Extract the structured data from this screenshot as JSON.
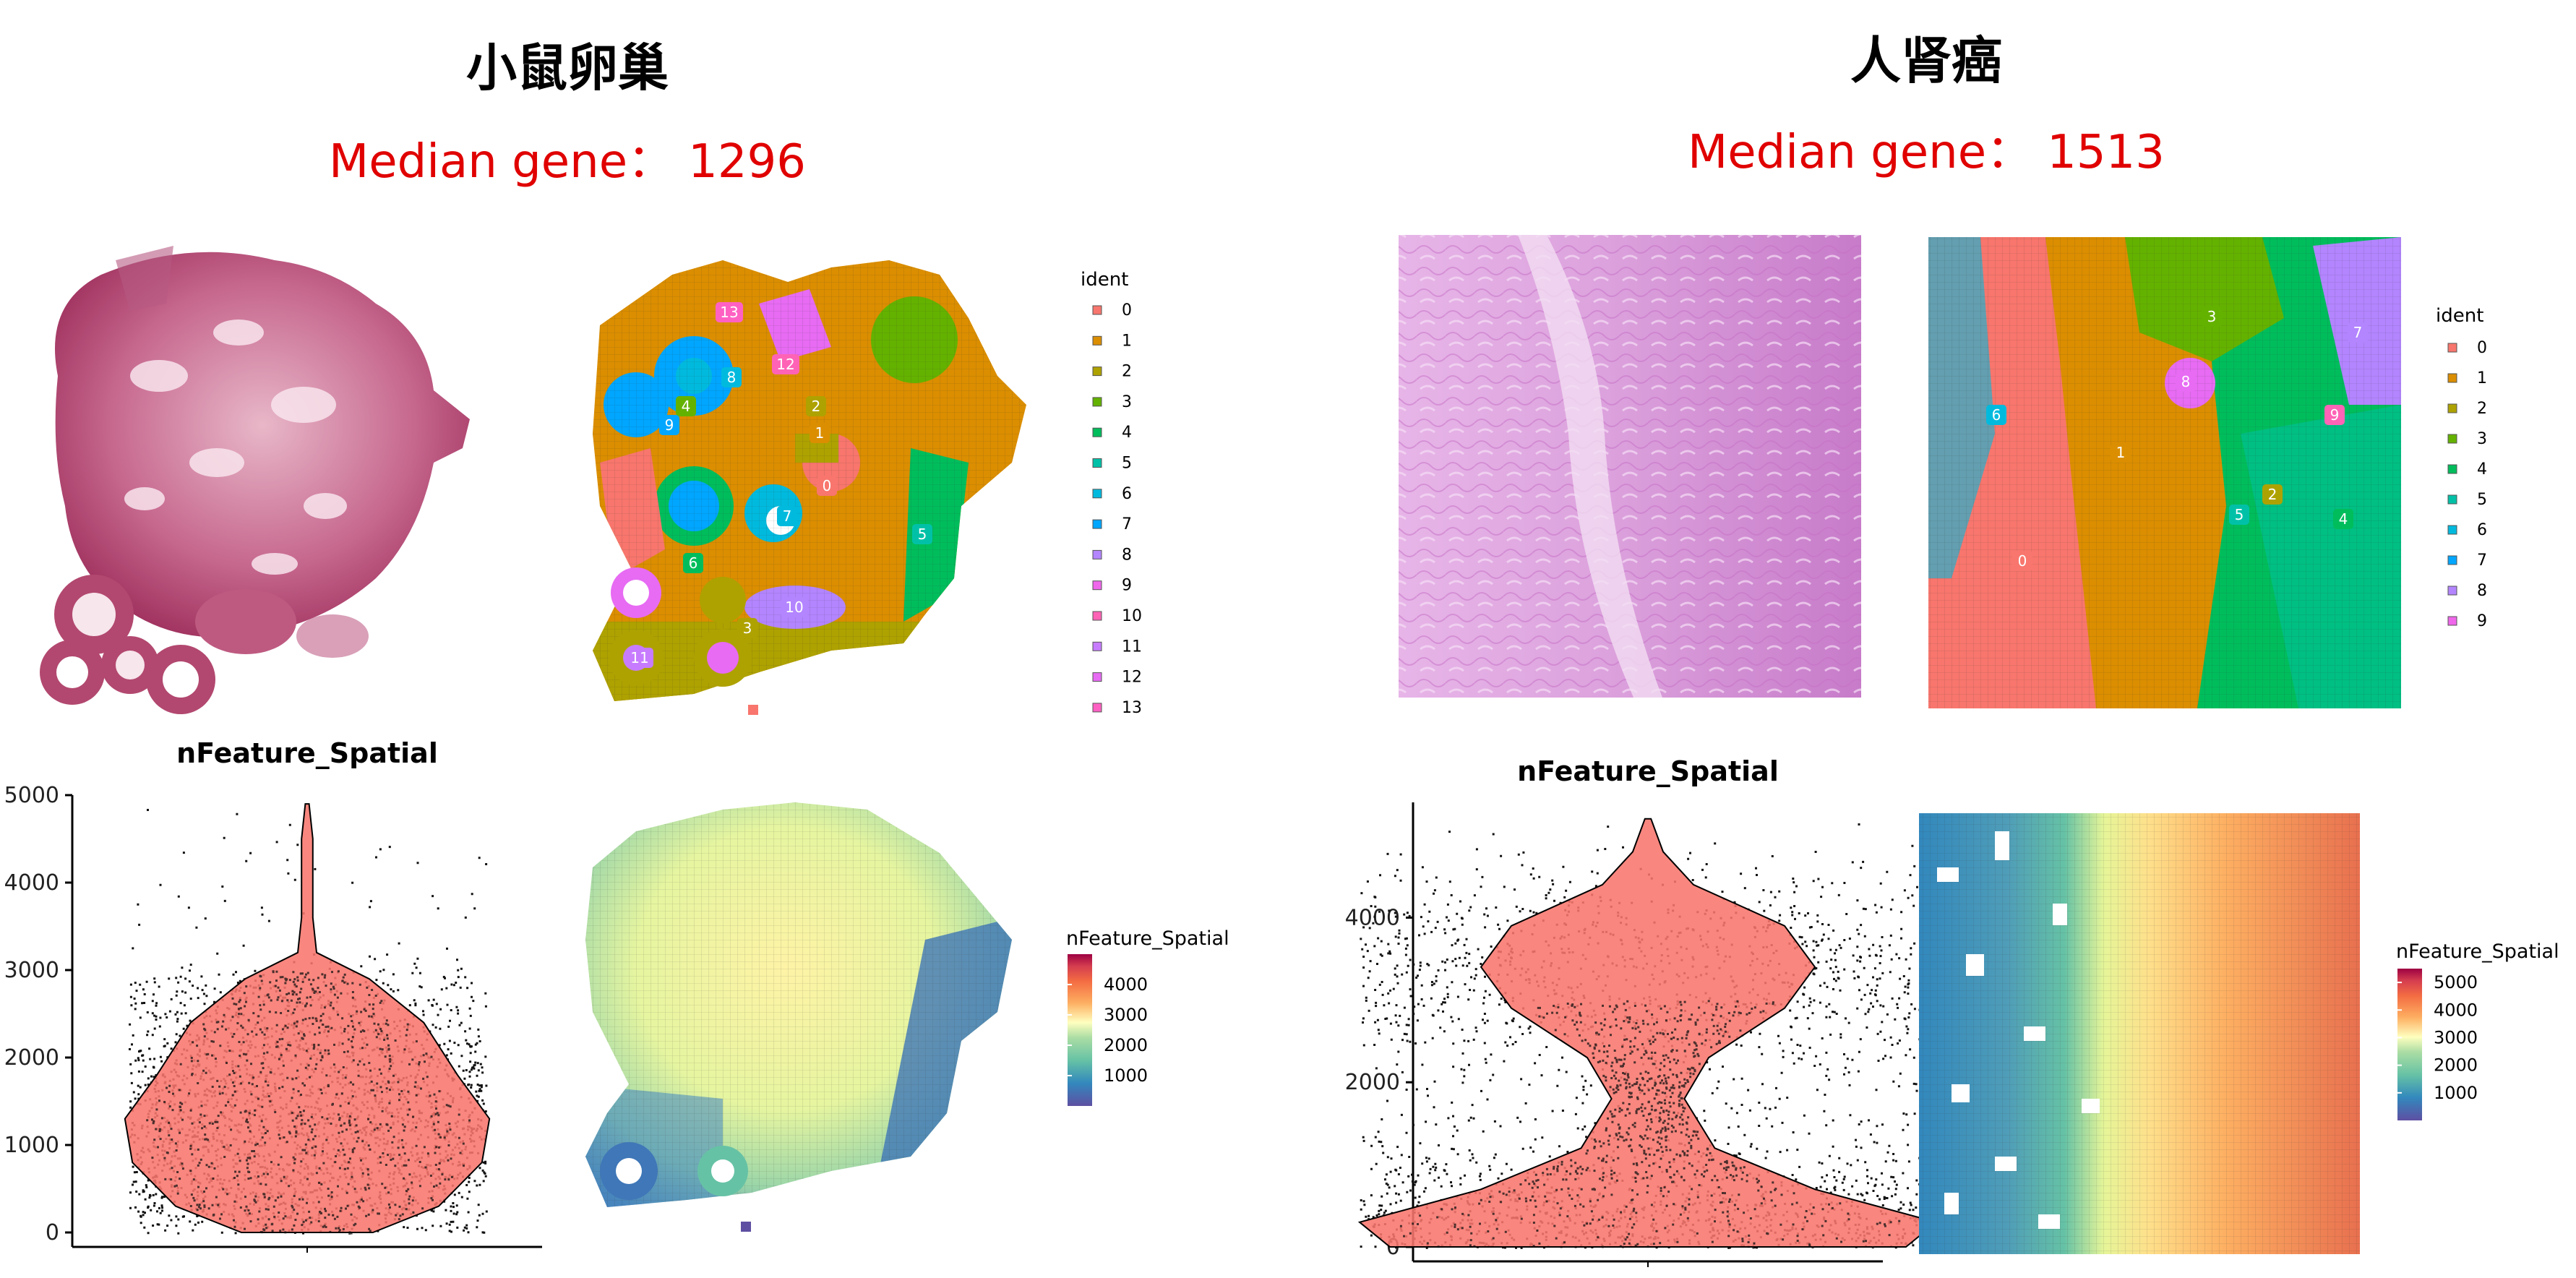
{
  "left_panel": {
    "title": "小鼠卵巢",
    "median_label": "Median gene：",
    "median_value": "1296",
    "cluster_legend": {
      "title": "ident",
      "items": [
        "0",
        "1",
        "2",
        "3",
        "4",
        "5",
        "6",
        "7",
        "8",
        "9",
        "10",
        "11",
        "12",
        "13"
      ]
    },
    "violin_title": "nFeature_Spatial",
    "feature_legend": {
      "title": "nFeature_Spatial",
      "ticks": [
        "4000",
        "3000",
        "2000",
        "1000"
      ]
    }
  },
  "right_panel": {
    "title": "人肾癌",
    "median_label": "Median gene：",
    "median_value": "1513",
    "cluster_legend": {
      "title": "ident",
      "items": [
        "0",
        "1",
        "2",
        "3",
        "4",
        "5",
        "6",
        "7",
        "8",
        "9"
      ]
    },
    "violin_title": "nFeature_Spatial",
    "feature_legend": {
      "title": "nFeature_Spatial",
      "ticks": [
        "5000",
        "4000",
        "3000",
        "2000",
        "1000"
      ]
    }
  },
  "colors": {
    "clusters": [
      "#F8766D",
      "#DB8E00",
      "#AEA200",
      "#64B200",
      "#00BD5C",
      "#00C1A7",
      "#00BADE",
      "#00A6FF",
      "#B385FF",
      "#EF67EB",
      "#FF63B6",
      "#C77CFF",
      "#E76BF3",
      "#FF61C3"
    ],
    "violin_fill": "#F8766D",
    "title_red": "#E00000",
    "tissue_pink": "#B8476E"
  },
  "chart_data": [
    {
      "type": "violin",
      "title": "nFeature_Spatial",
      "panel": "小鼠卵巢",
      "ylim": [
        0,
        5000
      ],
      "yticks": [
        0,
        1000,
        2000,
        3000,
        4000,
        5000
      ],
      "max": 4900,
      "median": 1296,
      "shape": [
        [
          0,
          0.35
        ],
        [
          300,
          0.7
        ],
        [
          800,
          0.93
        ],
        [
          1300,
          0.97
        ],
        [
          1800,
          0.8
        ],
        [
          2400,
          0.62
        ],
        [
          2900,
          0.33
        ],
        [
          3200,
          0.05
        ],
        [
          3600,
          0.03
        ],
        [
          4000,
          0.03
        ],
        [
          4500,
          0.03
        ],
        [
          4900,
          0.01
        ]
      ]
    },
    {
      "type": "violin",
      "title": "nFeature_Spatial",
      "panel": "人肾癌",
      "ylim": [
        0,
        5400
      ],
      "yticks": [
        0,
        2000,
        4000
      ],
      "max": 5200,
      "median": 1513,
      "shape": [
        [
          0,
          0.85
        ],
        [
          300,
          0.95
        ],
        [
          700,
          0.55
        ],
        [
          1200,
          0.22
        ],
        [
          1800,
          0.12
        ],
        [
          2300,
          0.2
        ],
        [
          2900,
          0.45
        ],
        [
          3400,
          0.55
        ],
        [
          3900,
          0.45
        ],
        [
          4400,
          0.15
        ],
        [
          4800,
          0.05
        ],
        [
          5200,
          0.01
        ]
      ]
    }
  ]
}
